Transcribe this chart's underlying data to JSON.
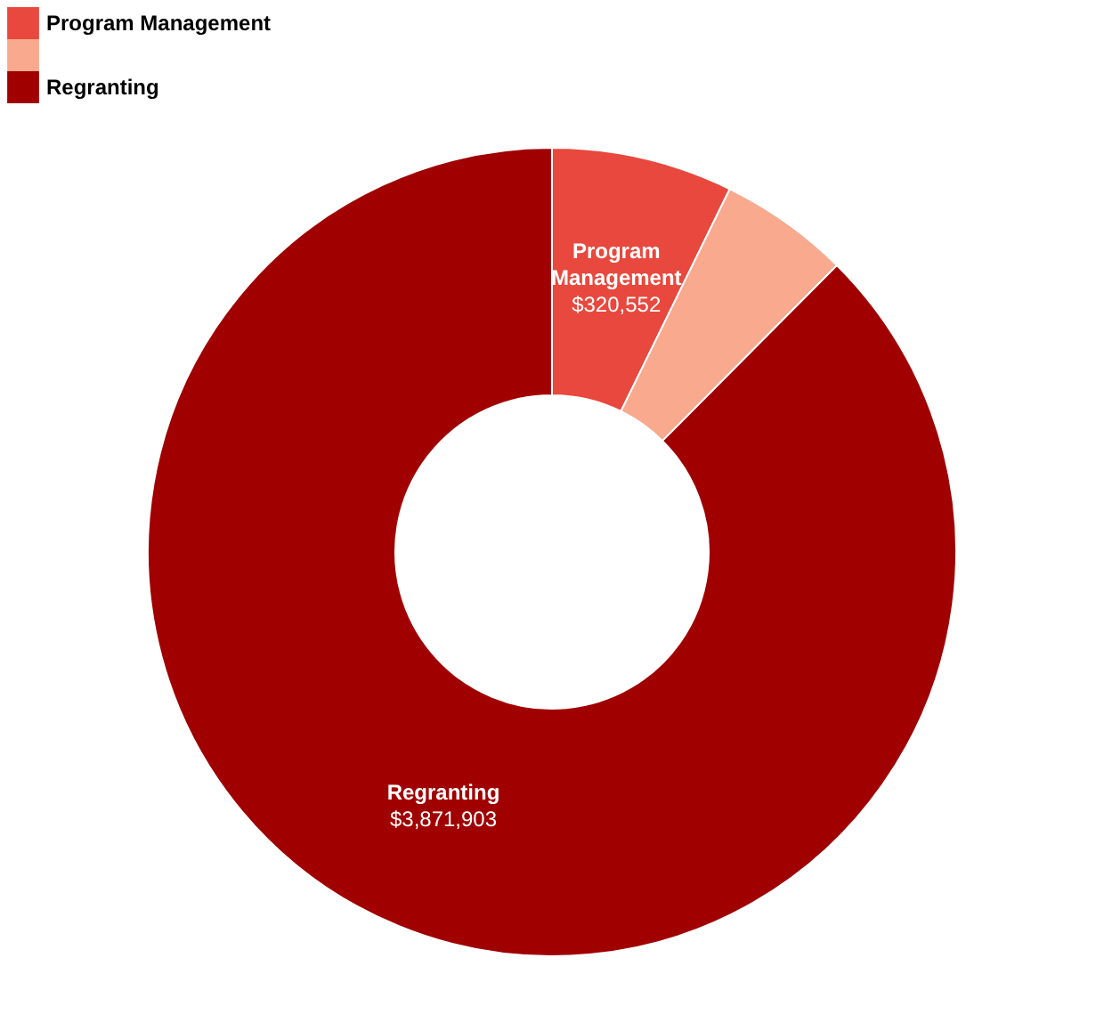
{
  "chart_data": {
    "type": "donut",
    "categories": [
      "Program Management",
      null,
      "Regranting"
    ],
    "values": [
      320552,
      230000,
      3871903
    ],
    "colors": [
      "#e8483d",
      "#f8a98e",
      "#a00000"
    ],
    "value_labels": [
      "$320,552",
      null,
      "$3,871,903"
    ],
    "legend": "top left"
  }
}
